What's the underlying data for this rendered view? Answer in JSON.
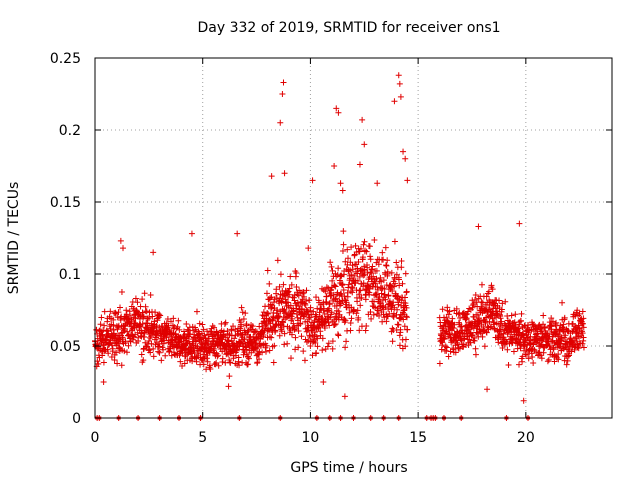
{
  "chart_data": {
    "type": "scatter",
    "title": "Day 332 of 2019, SRMTID for receiver ons1",
    "xlabel": "GPS time / hours",
    "ylabel": "SRMTID / TECUs",
    "xlim": [
      0,
      24
    ],
    "ylim": [
      0,
      0.25
    ],
    "grid": true,
    "marker": "+",
    "color": "#e00000",
    "x_ticks": [
      0,
      5,
      10,
      15,
      20
    ],
    "x_tick_labels": [
      "0",
      "5",
      "10",
      "15",
      "20"
    ],
    "y_ticks": [
      0,
      0.05,
      0.1,
      0.15,
      0.2,
      0.25
    ],
    "y_tick_labels": [
      "0",
      "0.05",
      "0.1",
      "0.15",
      "0.2",
      "0.25"
    ],
    "profile": {
      "description_hours": [
        0,
        1,
        2,
        3,
        4,
        5,
        6,
        7,
        7.5,
        8,
        8.5,
        9,
        9.5,
        10,
        10.5,
        11,
        11.5,
        12,
        12.5,
        13,
        13.5,
        14,
        14.5,
        15,
        15.5,
        16,
        16.5,
        17,
        17.5,
        18,
        18.5,
        19,
        19.5,
        20,
        20.5,
        21,
        21.5,
        22,
        22.5,
        22.7
      ],
      "center": [
        0.05,
        0.06,
        0.065,
        0.06,
        0.05,
        0.05,
        0.05,
        0.055,
        0.05,
        0.065,
        0.075,
        0.075,
        0.075,
        0.065,
        0.065,
        0.08,
        0.085,
        0.09,
        0.095,
        0.09,
        0.085,
        0.08,
        0.07,
        null,
        null,
        0.06,
        0.06,
        0.06,
        0.065,
        0.07,
        0.075,
        0.06,
        0.06,
        0.055,
        0.055,
        0.055,
        0.055,
        0.055,
        0.06,
        0.06
      ],
      "spread": [
        0.012,
        0.015,
        0.015,
        0.015,
        0.012,
        0.012,
        0.012,
        0.015,
        0.012,
        0.02,
        0.02,
        0.02,
        0.018,
        0.015,
        0.018,
        0.022,
        0.025,
        0.025,
        0.025,
        0.025,
        0.025,
        0.025,
        0.02,
        null,
        null,
        0.012,
        0.013,
        0.013,
        0.014,
        0.015,
        0.015,
        0.013,
        0.013,
        0.013,
        0.013,
        0.013,
        0.013,
        0.013,
        0.013,
        0.013
      ]
    },
    "data_gaps_hours": [
      [
        14.9,
        15.9
      ]
    ],
    "outliers": [
      {
        "x": 1.2,
        "y": 0.123
      },
      {
        "x": 1.3,
        "y": 0.118
      },
      {
        "x": 2.7,
        "y": 0.115
      },
      {
        "x": 4.5,
        "y": 0.128
      },
      {
        "x": 6.6,
        "y": 0.128
      },
      {
        "x": 8.2,
        "y": 0.168
      },
      {
        "x": 8.6,
        "y": 0.205
      },
      {
        "x": 8.7,
        "y": 0.225
      },
      {
        "x": 8.75,
        "y": 0.233
      },
      {
        "x": 8.8,
        "y": 0.17
      },
      {
        "x": 10.1,
        "y": 0.165
      },
      {
        "x": 11.1,
        "y": 0.175
      },
      {
        "x": 11.2,
        "y": 0.215
      },
      {
        "x": 11.3,
        "y": 0.212
      },
      {
        "x": 11.4,
        "y": 0.163
      },
      {
        "x": 11.5,
        "y": 0.158
      },
      {
        "x": 12.3,
        "y": 0.176
      },
      {
        "x": 12.4,
        "y": 0.207
      },
      {
        "x": 12.5,
        "y": 0.19
      },
      {
        "x": 13.1,
        "y": 0.163
      },
      {
        "x": 13.9,
        "y": 0.22
      },
      {
        "x": 14.1,
        "y": 0.238
      },
      {
        "x": 14.15,
        "y": 0.232
      },
      {
        "x": 14.2,
        "y": 0.223
      },
      {
        "x": 14.3,
        "y": 0.185
      },
      {
        "x": 14.4,
        "y": 0.18
      },
      {
        "x": 14.5,
        "y": 0.165
      },
      {
        "x": 17.8,
        "y": 0.133
      },
      {
        "x": 19.7,
        "y": 0.135
      },
      {
        "x": 9.9,
        "y": 0.118
      },
      {
        "x": 11.6,
        "y": 0.015
      },
      {
        "x": 19.9,
        "y": 0.012
      },
      {
        "x": 18.2,
        "y": 0.02
      },
      {
        "x": 10.6,
        "y": 0.025
      },
      {
        "x": 0.4,
        "y": 0.025
      },
      {
        "x": 6.2,
        "y": 0.022
      }
    ],
    "zero_value_hours": [
      0.1,
      0.2,
      1.1,
      2.0,
      3.0,
      3.9,
      4.9,
      6.7,
      8.6,
      10.3,
      10.9,
      11.4,
      12.0,
      12.8,
      13.4,
      14.1,
      15.4,
      15.6,
      15.7,
      15.8,
      16.2,
      17.0,
      19.1,
      20.1
    ]
  }
}
